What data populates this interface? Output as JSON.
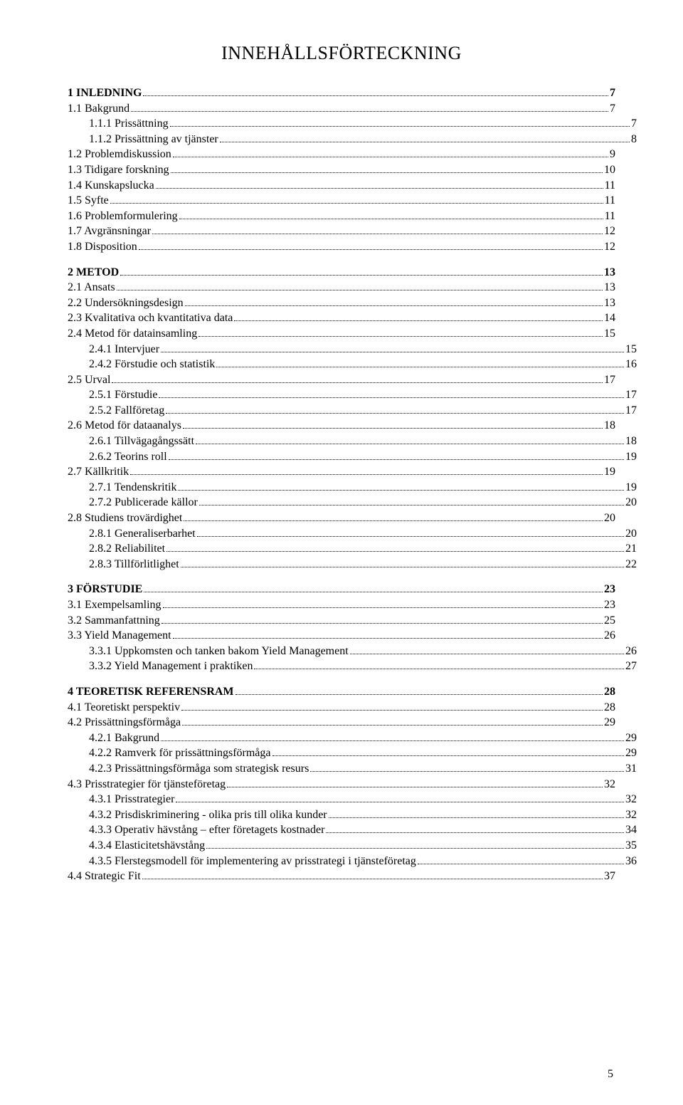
{
  "title": "INNEHÅLLSFÖRTECKNING",
  "page_number": "5",
  "toc": [
    {
      "label": "1 INLEDNING",
      "page": "7",
      "indent": 0,
      "bold": true,
      "space_before": false
    },
    {
      "label": "1.1 Bakgrund",
      "page": "7",
      "indent": 0
    },
    {
      "label": "1.1.1 Prissättning",
      "page": "7",
      "indent": 1
    },
    {
      "label": "1.1.2 Prissättning av tjänster",
      "page": "8",
      "indent": 1
    },
    {
      "label": "1.2 Problemdiskussion",
      "page": "9",
      "indent": 0
    },
    {
      "label": "1.3 Tidigare forskning",
      "page": "10",
      "indent": 0
    },
    {
      "label": "1.4 Kunskapslucka",
      "page": "11",
      "indent": 0
    },
    {
      "label": "1.5 Syfte",
      "page": "11",
      "indent": 0
    },
    {
      "label": "1.6 Problemformulering",
      "page": "11",
      "indent": 0
    },
    {
      "label": "1.7 Avgränsningar",
      "page": "12",
      "indent": 0
    },
    {
      "label": "1.8 Disposition",
      "page": "12",
      "indent": 0
    },
    {
      "label": "2 METOD",
      "page": "13",
      "indent": 0,
      "bold": true,
      "space_before": true
    },
    {
      "label": "2.1 Ansats",
      "page": "13",
      "indent": 0
    },
    {
      "label": "2.2 Undersökningsdesign",
      "page": "13",
      "indent": 0
    },
    {
      "label": "2.3 Kvalitativa och kvantitativa data",
      "page": "14",
      "indent": 0
    },
    {
      "label": "2.4 Metod för datainsamling",
      "page": "15",
      "indent": 0
    },
    {
      "label": "2.4.1 Intervjuer",
      "page": "15",
      "indent": 1
    },
    {
      "label": "2.4.2 Förstudie och statistik",
      "page": "16",
      "indent": 1
    },
    {
      "label": "2.5 Urval",
      "page": "17",
      "indent": 0
    },
    {
      "label": "2.5.1 Förstudie",
      "page": "17",
      "indent": 1
    },
    {
      "label": "2.5.2 Fallföretag",
      "page": "17",
      "indent": 1
    },
    {
      "label": "2.6 Metod för dataanalys",
      "page": "18",
      "indent": 0
    },
    {
      "label": "2.6.1 Tillvägagångssätt",
      "page": "18",
      "indent": 1
    },
    {
      "label": "2.6.2 Teorins roll",
      "page": "19",
      "indent": 1
    },
    {
      "label": "2.7 Källkritik",
      "page": "19",
      "indent": 0
    },
    {
      "label": "2.7.1 Tendenskritik",
      "page": "19",
      "indent": 1
    },
    {
      "label": "2.7.2 Publicerade källor",
      "page": "20",
      "indent": 1
    },
    {
      "label": "2.8 Studiens trovärdighet",
      "page": "20",
      "indent": 0
    },
    {
      "label": "2.8.1 Generaliserbarhet",
      "page": "20",
      "indent": 1
    },
    {
      "label": "2.8.2 Reliabilitet",
      "page": "21",
      "indent": 1
    },
    {
      "label": "2.8.3 Tillförlitlighet",
      "page": "22",
      "indent": 1
    },
    {
      "label": "3 FÖRSTUDIE",
      "page": "23",
      "indent": 0,
      "bold": true,
      "space_before": true
    },
    {
      "label": "3.1 Exempelsamling",
      "page": "23",
      "indent": 0
    },
    {
      "label": "3.2 Sammanfattning",
      "page": "25",
      "indent": 0
    },
    {
      "label": "3.3 Yield Management",
      "page": "26",
      "indent": 0
    },
    {
      "label": "3.3.1 Uppkomsten och tanken bakom Yield Management",
      "page": "26",
      "indent": 1
    },
    {
      "label": "3.3.2 Yield Management i praktiken",
      "page": "27",
      "indent": 1
    },
    {
      "label": "4 TEORETISK REFERENSRAM",
      "page": "28",
      "indent": 0,
      "bold": true,
      "space_before": true
    },
    {
      "label": "4.1 Teoretiskt perspektiv",
      "page": "28",
      "indent": 0
    },
    {
      "label": "4.2 Prissättningsförmåga",
      "page": "29",
      "indent": 0
    },
    {
      "label": "4.2.1 Bakgrund",
      "page": "29",
      "indent": 1
    },
    {
      "label": "4.2.2 Ramverk för prissättningsförmåga",
      "page": "29",
      "indent": 1
    },
    {
      "label": "4.2.3 Prissättningsförmåga som strategisk resurs",
      "page": "31",
      "indent": 1
    },
    {
      "label": "4.3 Prisstrategier för tjänsteföretag",
      "page": "32",
      "indent": 0
    },
    {
      "label": "4.3.1 Prisstrategier",
      "page": "32",
      "indent": 1
    },
    {
      "label": "4.3.2 Prisdiskriminering - olika pris till olika kunder",
      "page": "32",
      "indent": 1
    },
    {
      "label": "4.3.3 Operativ hävstång – efter företagets kostnader",
      "page": "34",
      "indent": 1
    },
    {
      "label": "4.3.4 Elasticitetshävstång",
      "page": "35",
      "indent": 1
    },
    {
      "label": "4.3.5 Flerstegsmodell för implementering av prisstrategi i tjänsteföretag",
      "page": "36",
      "indent": 1
    },
    {
      "label": "4.4 Strategic Fit",
      "page": "37",
      "indent": 0
    }
  ]
}
